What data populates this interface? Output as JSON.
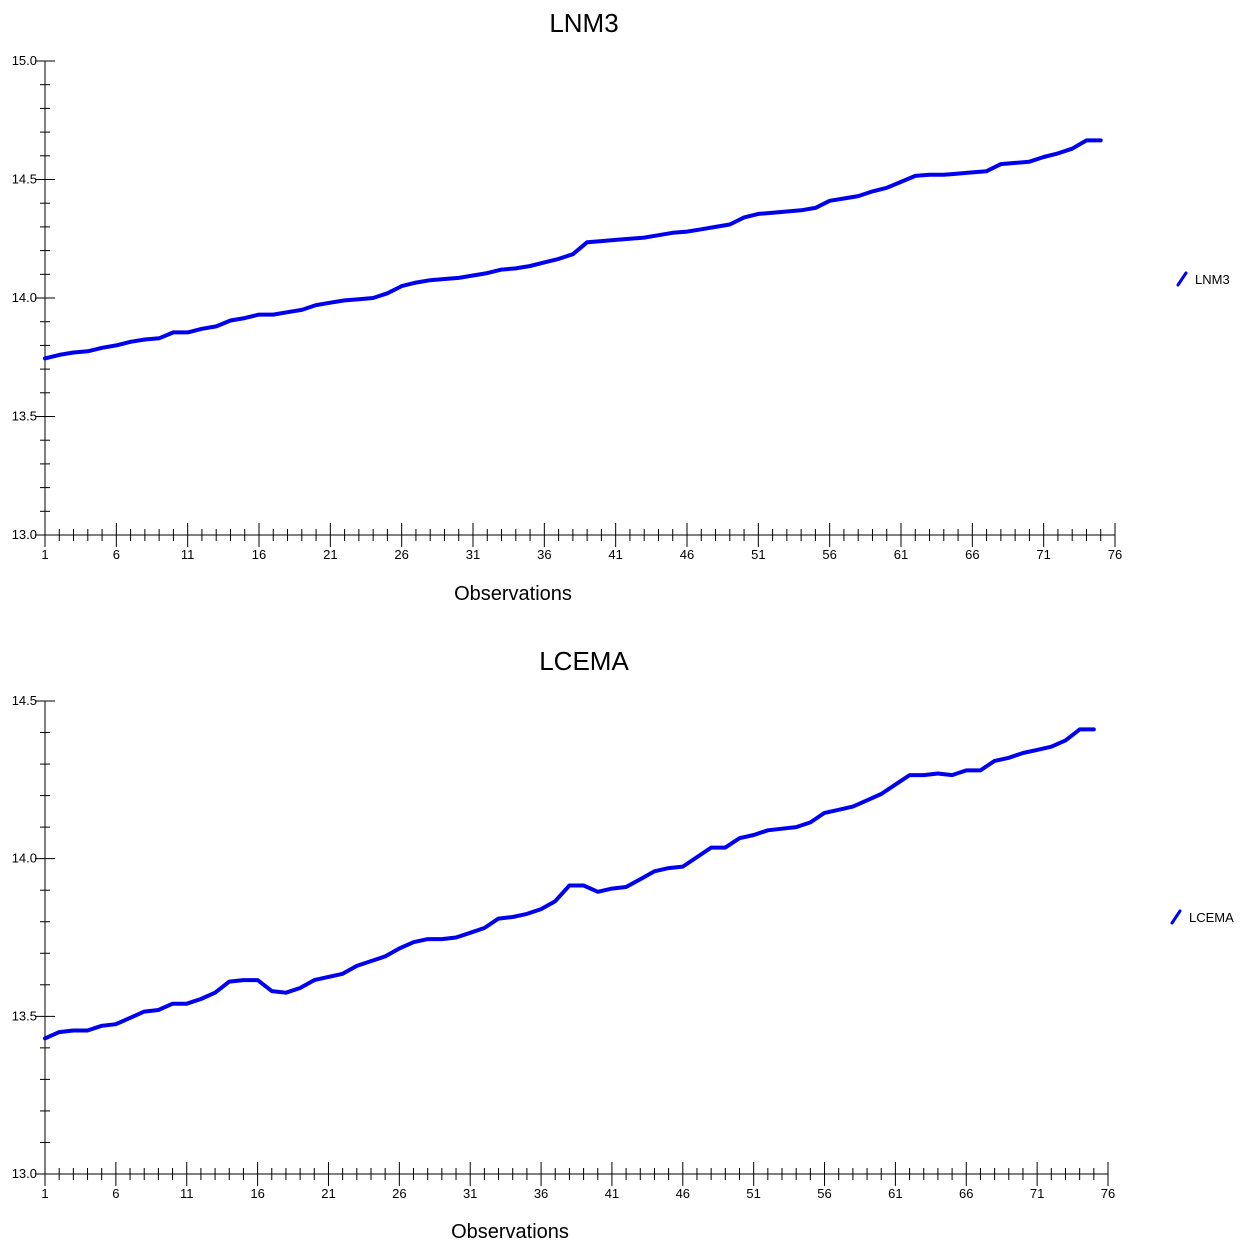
{
  "chart_data": [
    {
      "type": "line",
      "title": "LNM3",
      "xlabel": "Observations",
      "ylabel": "",
      "ylim": [
        13.0,
        15.0
      ],
      "xlim": [
        1,
        76
      ],
      "y_ticks": [
        "15.0",
        "14.5",
        "14.0",
        "13.5",
        "13.0"
      ],
      "x_ticks": [
        "1",
        "6",
        "11",
        "16",
        "21",
        "26",
        "31",
        "36",
        "41",
        "46",
        "51",
        "56",
        "61",
        "66",
        "71",
        "76"
      ],
      "grid": false,
      "legend_position": "right",
      "color": "#0000ee",
      "series": [
        {
          "name": "LNM3",
          "values": [
            13.745,
            13.76,
            13.77,
            13.775,
            13.79,
            13.8,
            13.815,
            13.825,
            13.83,
            13.855,
            13.855,
            13.87,
            13.88,
            13.905,
            13.915,
            13.93,
            13.93,
            13.94,
            13.95,
            13.97,
            13.98,
            13.99,
            13.995,
            14.0,
            14.02,
            14.05,
            14.065,
            14.075,
            14.08,
            14.085,
            14.095,
            14.105,
            14.12,
            14.125,
            14.135,
            14.15,
            14.165,
            14.185,
            14.235,
            14.24,
            14.245,
            14.25,
            14.255,
            14.265,
            14.275,
            14.28,
            14.29,
            14.3,
            14.31,
            14.34,
            14.355,
            14.36,
            14.365,
            14.37,
            14.38,
            14.41,
            14.42,
            14.43,
            14.45,
            14.465,
            14.49,
            14.515,
            14.52,
            14.52,
            14.525,
            14.53,
            14.535,
            14.565,
            14.57,
            14.575,
            14.595,
            14.61,
            14.63,
            14.665,
            14.665
          ]
        }
      ]
    },
    {
      "type": "line",
      "title": "LCEMA",
      "xlabel": "Observations",
      "ylabel": "",
      "ylim": [
        13.0,
        14.5
      ],
      "xlim": [
        1,
        76
      ],
      "y_ticks": [
        "14.5",
        "14.0",
        "13.5",
        "13.0"
      ],
      "x_ticks": [
        "1",
        "6",
        "11",
        "16",
        "21",
        "26",
        "31",
        "36",
        "41",
        "46",
        "51",
        "56",
        "61",
        "66",
        "71",
        "76"
      ],
      "grid": false,
      "legend_position": "right",
      "color": "#0000ee",
      "series": [
        {
          "name": "LCEMA",
          "values": [
            13.43,
            13.45,
            13.455,
            13.455,
            13.47,
            13.475,
            13.495,
            13.515,
            13.52,
            13.54,
            13.54,
            13.555,
            13.575,
            13.61,
            13.615,
            13.615,
            13.58,
            13.575,
            13.59,
            13.615,
            13.625,
            13.635,
            13.66,
            13.675,
            13.69,
            13.715,
            13.735,
            13.745,
            13.745,
            13.75,
            13.765,
            13.78,
            13.81,
            13.815,
            13.825,
            13.84,
            13.865,
            13.915,
            13.915,
            13.895,
            13.905,
            13.91,
            13.935,
            13.96,
            13.97,
            13.975,
            14.005,
            14.035,
            14.035,
            14.065,
            14.075,
            14.09,
            14.095,
            14.1,
            14.115,
            14.145,
            14.155,
            14.165,
            14.185,
            14.205,
            14.235,
            14.265,
            14.265,
            14.27,
            14.265,
            14.28,
            14.28,
            14.31,
            14.32,
            14.335,
            14.345,
            14.355,
            14.375,
            14.41,
            14.41
          ]
        }
      ]
    }
  ]
}
